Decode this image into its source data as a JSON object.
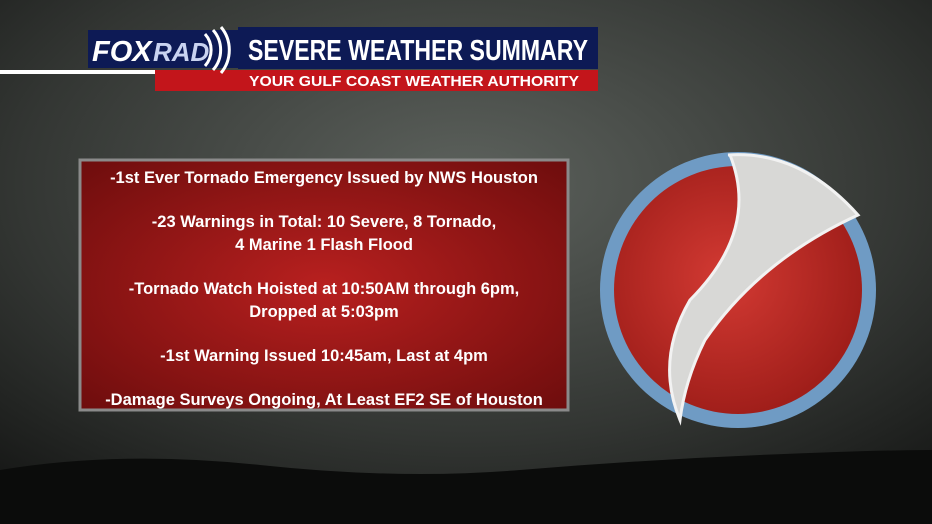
{
  "logo": {
    "fox": "FOX",
    "rad": "RAD"
  },
  "header": {
    "title": "SEVERE WEATHER SUMMARY",
    "subtitle": "YOUR GULF COAST WEATHER AUTHORITY"
  },
  "bullets": [
    [
      "-1st Ever Tornado Emergency Issued by NWS Houston"
    ],
    [
      "-23 Warnings in Total: 10 Severe, 8 Tornado,",
      "4 Marine 1 Flash Flood"
    ],
    [
      "-Tornado Watch Hoisted at 10:50AM through 6pm,",
      "Dropped at 5:03pm"
    ],
    [
      "-1st Warning Issued 10:45am, Last at 4pm"
    ],
    [
      "-Damage Surveys Ongoing, At Least EF2 SE of Houston"
    ]
  ]
}
